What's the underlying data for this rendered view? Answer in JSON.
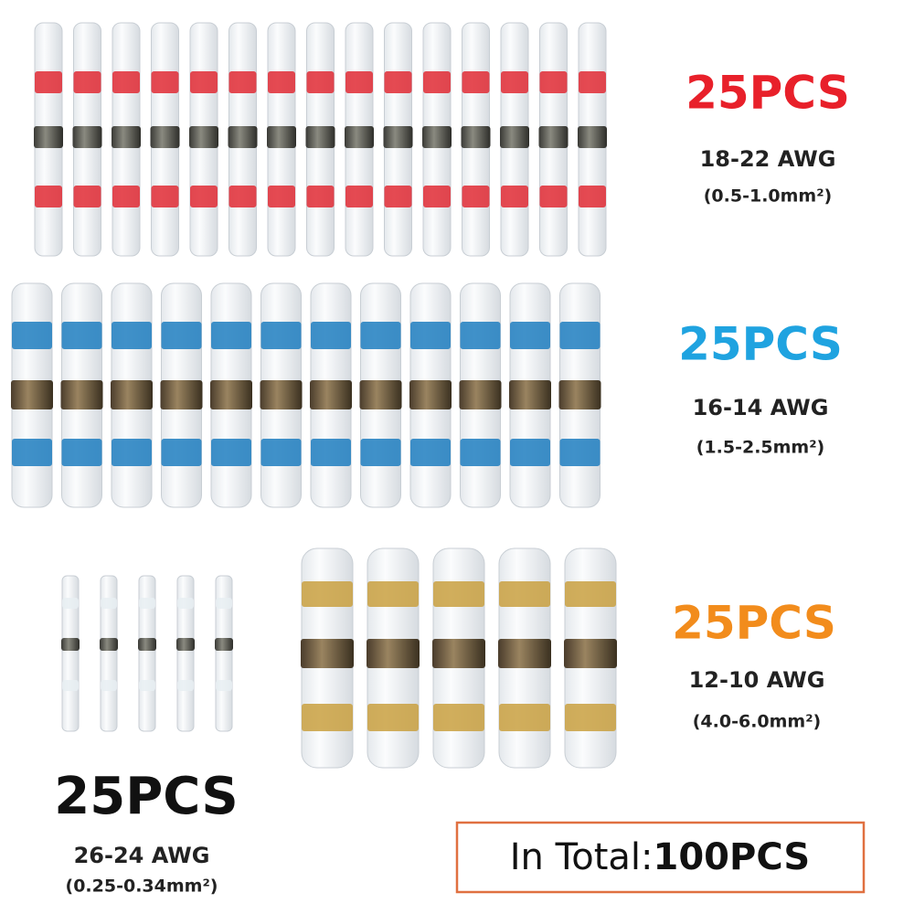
{
  "groups": [
    {
      "count": "25PCS",
      "awg": "18-22 AWG",
      "size": "(0.5-1.0mm²)"
    },
    {
      "count": "25PCS",
      "awg": "16-14 AWG",
      "size": "(1.5-2.5mm²)"
    },
    {
      "count": "25PCS",
      "awg": "12-10 AWG",
      "size": "(4.0-6.0mm²)"
    },
    {
      "count": "25PCS",
      "awg": "26-24 AWG",
      "size": "(0.25-0.34mm²)"
    }
  ],
  "total": {
    "label": "In Total:",
    "count": "100PCS"
  }
}
